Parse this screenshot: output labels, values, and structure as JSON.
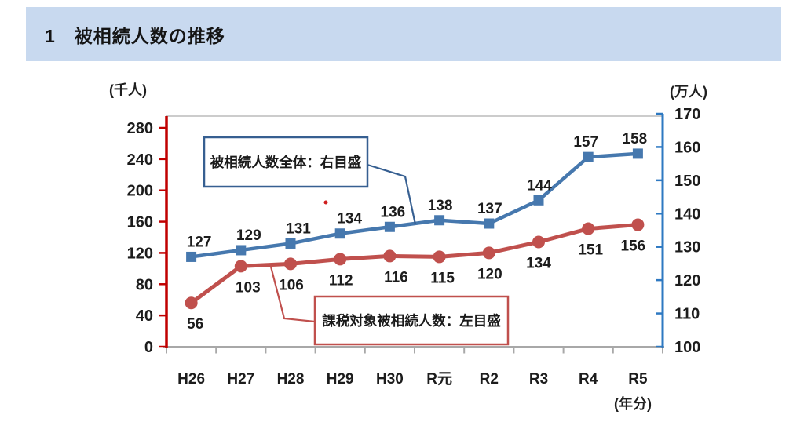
{
  "header": {
    "title": "1　被相続人数の推移",
    "bg_color": "#c8d9ef"
  },
  "chart_data": {
    "type": "line",
    "title": "1　被相続人数の推移",
    "categories": [
      "H26",
      "H27",
      "H28",
      "H29",
      "H30",
      "R元",
      "R2",
      "R3",
      "R4",
      "R5"
    ],
    "series": [
      {
        "name": "被相続人数全体：右目盛",
        "axis": "right",
        "marker": "square",
        "color": "#4678ae",
        "values": [
          127,
          129,
          131,
          134,
          136,
          138,
          137,
          144,
          157,
          158
        ]
      },
      {
        "name": "課税対象被相続人数：左目盛",
        "axis": "left",
        "marker": "circle",
        "color": "#c0504d",
        "values": [
          56,
          103,
          106,
          112,
          116,
          115,
          120,
          134,
          151,
          156
        ]
      }
    ],
    "left_axis": {
      "unit": "(千人)",
      "min": 0,
      "max": 280,
      "step": 40,
      "ticks": [
        0,
        40,
        80,
        120,
        160,
        200,
        240,
        280
      ],
      "color": "#c00000"
    },
    "right_axis": {
      "unit": "(万人)",
      "min": 100,
      "max": 170,
      "step": 10,
      "ticks": [
        100,
        110,
        120,
        130,
        140,
        150,
        160,
        170
      ],
      "color": "#2e79c2"
    },
    "x_axis": {
      "unit": "(年分)"
    },
    "annotations": [
      {
        "text": "被相続人数全体：右目盛",
        "color": "#365f91"
      },
      {
        "text": "課税対象被相続人数：左目盛",
        "color": "#c0504d"
      }
    ],
    "grid": "off",
    "legend_position": "callout-boxes"
  }
}
